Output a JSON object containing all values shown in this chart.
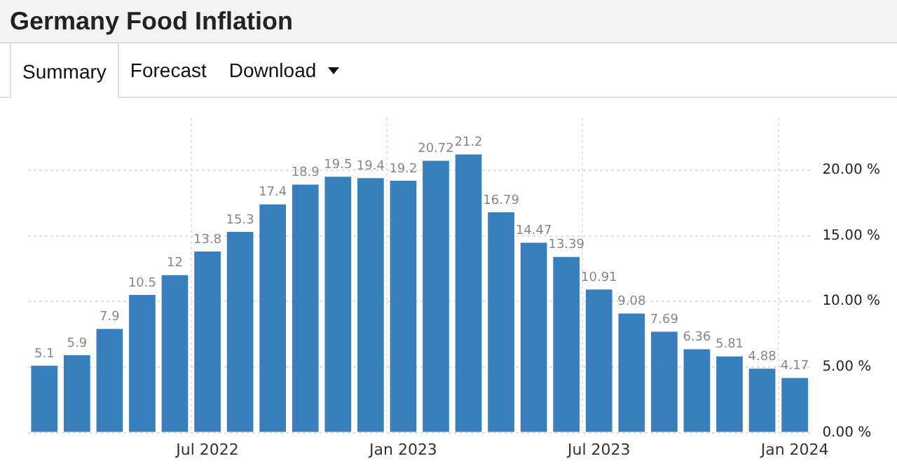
{
  "chart_data": {
    "type": "bar",
    "title": "Germany Food Inflation",
    "annotations": [
      "Summary",
      "Forecast",
      "Download"
    ],
    "categories": [
      null,
      null,
      null,
      null,
      null,
      "Jul 2022",
      null,
      null,
      null,
      null,
      null,
      "Jan 2023",
      null,
      null,
      null,
      null,
      null,
      "Jul 2023",
      null,
      null,
      null,
      null,
      null,
      "Jan 2024"
    ],
    "values": [
      5.1,
      5.9,
      7.9,
      10.5,
      12,
      13.8,
      15.3,
      17.4,
      18.9,
      19.5,
      19.4,
      19.2,
      20.72,
      21.2,
      16.79,
      14.47,
      13.39,
      10.91,
      9.08,
      7.69,
      6.36,
      5.81,
      4.88,
      4.17
    ],
    "color": "#3a7fbd",
    "ylim": [
      0,
      24
    ],
    "yticks": [
      {
        "value": 0,
        "label": "0.00 %"
      },
      {
        "value": 5,
        "label": "5.00 %"
      },
      {
        "value": 10,
        "label": "10.00 %"
      },
      {
        "value": 15,
        "label": "15.00 %"
      },
      {
        "value": 20,
        "label": "20.00 %"
      }
    ],
    "grid": true,
    "data_labels": true
  }
}
